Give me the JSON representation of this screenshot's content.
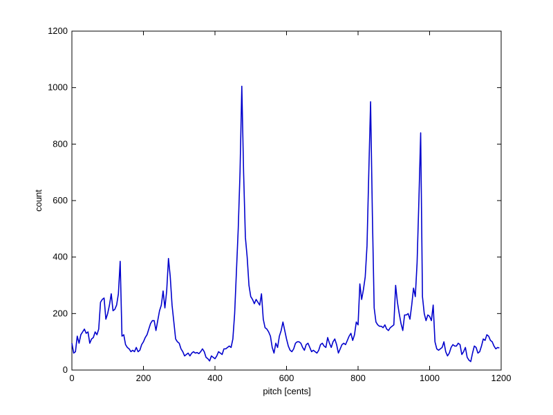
{
  "chart_data": {
    "type": "line",
    "xlabel": "pitch [cents]",
    "ylabel": "count",
    "xlim": [
      0,
      1200
    ],
    "ylim": [
      0,
      1200
    ],
    "xticks": [
      0,
      200,
      400,
      600,
      800,
      1000,
      1200
    ],
    "yticks": [
      0,
      200,
      400,
      600,
      800,
      1000,
      1200
    ],
    "series": [
      {
        "color": "#0000cc",
        "x": [
          0,
          5,
          10,
          15,
          20,
          25,
          30,
          35,
          40,
          45,
          50,
          55,
          60,
          65,
          70,
          75,
          80,
          85,
          90,
          95,
          100,
          105,
          110,
          115,
          120,
          125,
          130,
          135,
          140,
          145,
          150,
          155,
          160,
          165,
          170,
          175,
          180,
          185,
          190,
          195,
          200,
          205,
          210,
          215,
          220,
          225,
          230,
          235,
          240,
          245,
          250,
          255,
          260,
          265,
          270,
          275,
          280,
          285,
          290,
          295,
          300,
          305,
          310,
          315,
          320,
          325,
          330,
          335,
          340,
          345,
          350,
          355,
          360,
          365,
          370,
          375,
          380,
          385,
          390,
          395,
          400,
          405,
          410,
          415,
          420,
          425,
          430,
          435,
          440,
          445,
          450,
          455,
          460,
          465,
          470,
          475,
          480,
          485,
          490,
          495,
          500,
          505,
          510,
          515,
          520,
          525,
          530,
          535,
          540,
          545,
          550,
          555,
          560,
          565,
          570,
          575,
          580,
          585,
          590,
          595,
          600,
          605,
          610,
          615,
          620,
          625,
          630,
          635,
          640,
          645,
          650,
          655,
          660,
          665,
          670,
          675,
          680,
          685,
          690,
          695,
          700,
          705,
          710,
          715,
          720,
          725,
          730,
          735,
          740,
          745,
          750,
          755,
          760,
          765,
          770,
          775,
          780,
          785,
          790,
          795,
          800,
          805,
          810,
          815,
          820,
          825,
          830,
          835,
          840,
          845,
          850,
          855,
          860,
          865,
          870,
          875,
          880,
          885,
          890,
          895,
          900,
          905,
          910,
          915,
          920,
          925,
          930,
          935,
          940,
          945,
          950,
          955,
          960,
          965,
          970,
          975,
          980,
          985,
          990,
          995,
          1000,
          1005,
          1010,
          1015,
          1020,
          1025,
          1030,
          1035,
          1040,
          1045,
          1050,
          1055,
          1060,
          1065,
          1070,
          1075,
          1080,
          1085,
          1090,
          1095,
          1100,
          1105,
          1110,
          1115,
          1120,
          1125,
          1130,
          1135,
          1140,
          1145,
          1150,
          1155,
          1160,
          1165,
          1170,
          1175,
          1180,
          1185,
          1190,
          1195
        ],
        "values": [
          95,
          60,
          65,
          120,
          95,
          125,
          135,
          145,
          130,
          135,
          95,
          110,
          115,
          135,
          125,
          145,
          240,
          250,
          255,
          180,
          200,
          230,
          270,
          210,
          215,
          230,
          270,
          385,
          120,
          125,
          90,
          80,
          75,
          65,
          70,
          65,
          80,
          65,
          70,
          90,
          100,
          115,
          125,
          145,
          165,
          175,
          175,
          140,
          175,
          210,
          230,
          280,
          220,
          280,
          395,
          330,
          230,
          170,
          110,
          100,
          95,
          75,
          65,
          50,
          55,
          60,
          50,
          60,
          65,
          60,
          62,
          58,
          65,
          75,
          65,
          45,
          40,
          32,
          50,
          45,
          40,
          50,
          65,
          60,
          55,
          75,
          75,
          80,
          85,
          80,
          110,
          200,
          350,
          500,
          700,
          1005,
          700,
          470,
          400,
          300,
          260,
          250,
          235,
          250,
          240,
          230,
          270,
          180,
          150,
          145,
          135,
          120,
          80,
          60,
          95,
          80,
          120,
          140,
          170,
          140,
          110,
          85,
          70,
          65,
          75,
          95,
          100,
          100,
          95,
          80,
          70,
          90,
          95,
          80,
          65,
          70,
          65,
          60,
          70,
          90,
          95,
          85,
          80,
          115,
          95,
          80,
          100,
          110,
          90,
          60,
          75,
          90,
          95,
          90,
          105,
          120,
          130,
          105,
          125,
          170,
          160,
          305,
          250,
          285,
          330,
          440,
          700,
          950,
          550,
          220,
          170,
          160,
          155,
          155,
          150,
          160,
          145,
          140,
          150,
          155,
          160,
          300,
          240,
          200,
          165,
          140,
          195,
          195,
          200,
          180,
          230,
          290,
          260,
          380,
          600,
          840,
          260,
          200,
          175,
          195,
          190,
          175,
          230,
          100,
          75,
          70,
          75,
          80,
          100,
          65,
          50,
          60,
          80,
          90,
          85,
          85,
          95,
          90,
          55,
          65,
          80,
          45,
          35,
          30,
          60,
          85,
          80,
          60,
          65,
          85,
          110,
          105,
          125,
          120,
          105,
          100,
          85,
          75,
          80,
          78
        ]
      }
    ]
  }
}
